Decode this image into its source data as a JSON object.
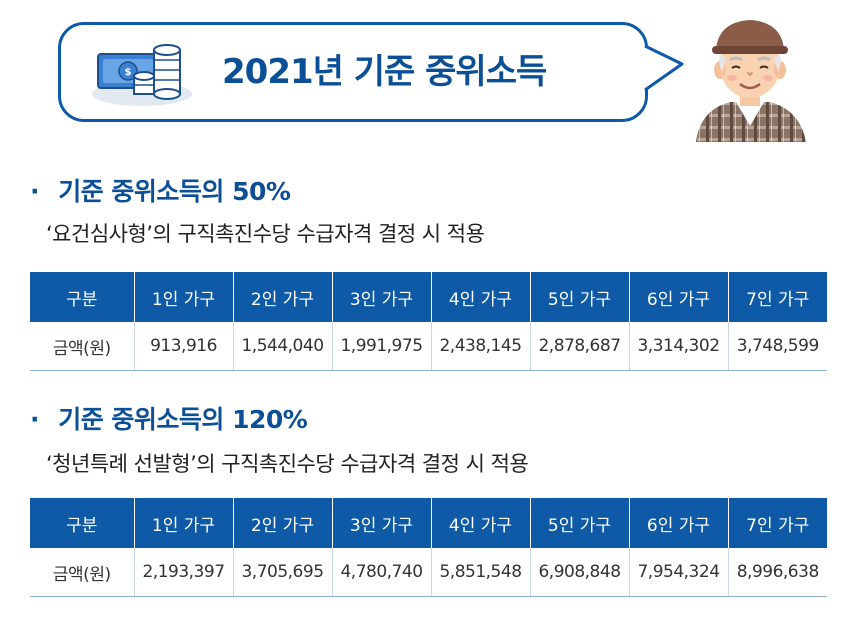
{
  "title": "2021년 기준 중위소득",
  "section1": {
    "bullet": "·",
    "heading": "기준 중위소득의 50%",
    "subtitle": "‘요건심사형’의 구직촉진수당 수급자격 결정 시 적용",
    "table": {
      "headers": [
        "구분",
        "1인 가구",
        "2인 가구",
        "3인 가구",
        "4인 가구",
        "5인 가구",
        "6인 가구",
        "7인 가구"
      ],
      "row": [
        "금액(원)",
        "913,916",
        "1,544,040",
        "1,991,975",
        "2,438,145",
        "2,878,687",
        "3,314,302",
        "3,748,599"
      ]
    }
  },
  "section2": {
    "bullet": "·",
    "heading": "기준 중위소득의 120%",
    "subtitle": "‘청년특례 선발형’의 구직촉진수당 수급자격 결정 시 적용",
    "table": {
      "headers": [
        "구분",
        "1인 가구",
        "2인 가구",
        "3인 가구",
        "4인 가구",
        "5인 가구",
        "6인 가구",
        "7인 가구"
      ],
      "row": [
        "금액(원)",
        "2,193,397",
        "3,705,695",
        "4,780,740",
        "5,851,548",
        "6,908,848",
        "7,954,324",
        "8,996,638"
      ]
    }
  },
  "colors": {
    "brand_blue": "#0b4f97",
    "header_blue": "#0e5aa6"
  },
  "icons": {
    "title_icon": "money-stack-icon",
    "character": "grandpa-illustration"
  }
}
